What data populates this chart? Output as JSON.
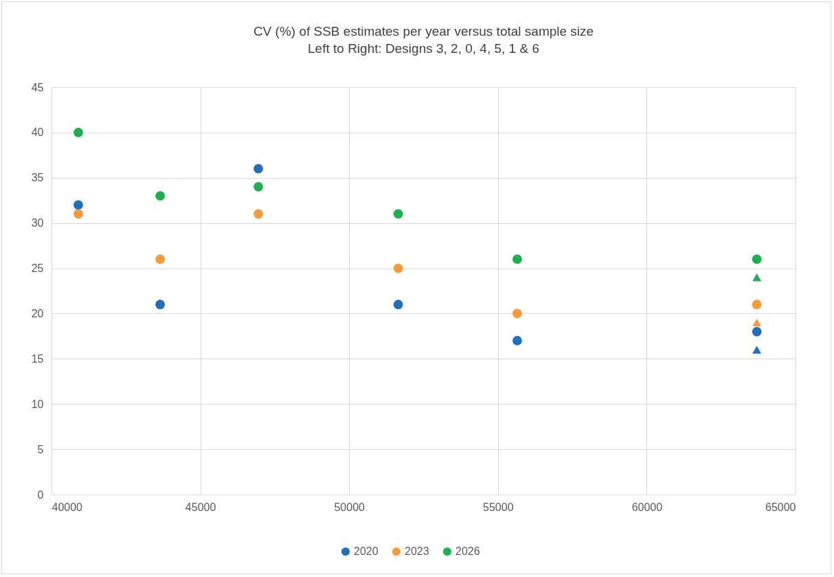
{
  "chart_data": {
    "type": "scatter",
    "title": "CV (%) of SSB estimates per year versus total sample size",
    "subtitle": "Left to Right: Designs 3, 2, 0, 4, 5, 1 & 6",
    "x": [
      40900,
      43650,
      46950,
      51650,
      55650,
      63700
    ],
    "series": [
      {
        "name": "2020",
        "color": "#1f6fbf",
        "values": [
          32,
          21,
          36,
          21,
          17,
          18
        ]
      },
      {
        "name": "2023",
        "color": "#f99a38",
        "values": [
          31,
          26,
          31,
          25,
          20,
          21
        ]
      },
      {
        "name": "2026",
        "color": "#1db04e",
        "values": [
          40,
          33,
          34,
          31,
          26,
          26
        ]
      },
      {
        "color": "#1f6fbf",
        "marker": "triangle",
        "values": [
          null,
          null,
          null,
          null,
          null,
          16
        ]
      },
      {
        "color": "#f99a38",
        "marker": "triangle",
        "values": [
          null,
          null,
          null,
          null,
          null,
          19
        ]
      },
      {
        "color": "#1db04e",
        "marker": "triangle",
        "values": [
          null,
          null,
          null,
          null,
          null,
          24
        ]
      }
    ],
    "marker": "circle",
    "xlim": [
      40000,
      65000
    ],
    "xticks": [
      40000,
      45000,
      50000,
      55000,
      60000,
      65000
    ],
    "ylim": [
      0,
      45
    ],
    "yticks": [
      0,
      5,
      10,
      15,
      20,
      25,
      30,
      35,
      40,
      45
    ],
    "grid": true,
    "legend": "bottom"
  }
}
